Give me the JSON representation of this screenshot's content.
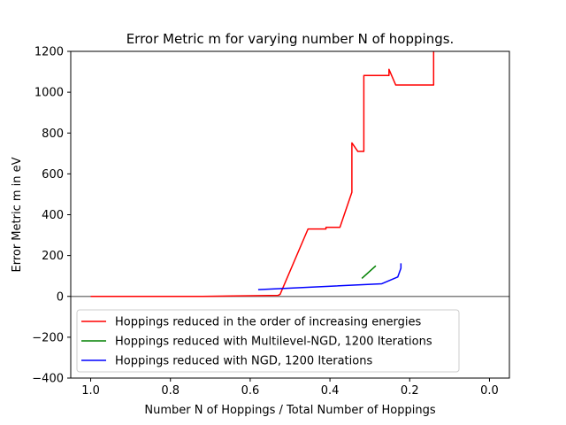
{
  "chart_data": {
    "type": "line",
    "title": "Error Metric m for varying number N of hoppings.",
    "xlabel": "Number N of Hoppings / Total Number of Hoppings",
    "ylabel": "Error Metric m in eV",
    "xlim": [
      1.05,
      -0.05
    ],
    "ylim": [
      -400,
      1200
    ],
    "x_inverted": true,
    "xticks": [
      1.0,
      0.8,
      0.6,
      0.4,
      0.2,
      0.0
    ],
    "xtick_labels": [
      "1.0",
      "0.8",
      "0.6",
      "0.4",
      "0.2",
      "0.0"
    ],
    "yticks": [
      -400,
      -200,
      0,
      200,
      400,
      600,
      800,
      1000,
      1200
    ],
    "ytick_labels": [
      "−400",
      "−200",
      "0",
      "200",
      "400",
      "600",
      "800",
      "1000",
      "1200"
    ],
    "hline": {
      "y": 0,
      "color": "#808080"
    },
    "legend_position": "lower-left",
    "grid": false,
    "series": [
      {
        "name": "Hoppings reduced in the order of increasing energies",
        "color": "#ff0000",
        "x": [
          1.0,
          0.72,
          0.53,
          0.525,
          0.455,
          0.41,
          0.41,
          0.375,
          0.345,
          0.345,
          0.33,
          0.315,
          0.315,
          0.252,
          0.252,
          0.235,
          0.14,
          0.14
        ],
        "y": [
          0,
          0,
          5,
          10,
          330,
          330,
          338,
          338,
          510,
          752,
          710,
          710,
          1082,
          1082,
          1112,
          1035,
          1035,
          1200
        ]
      },
      {
        "name": "Hoppings reduced with Multilevel-NGD, 1200 Iterations",
        "color": "#008000",
        "x": [
          0.32,
          0.285
        ],
        "y": [
          88,
          150
        ]
      },
      {
        "name": "Hoppings reduced with NGD, 1200 Iterations",
        "color": "#0000ff",
        "x": [
          0.58,
          0.27,
          0.23,
          0.222,
          0.222
        ],
        "y": [
          33,
          62,
          95,
          138,
          162
        ]
      }
    ]
  }
}
